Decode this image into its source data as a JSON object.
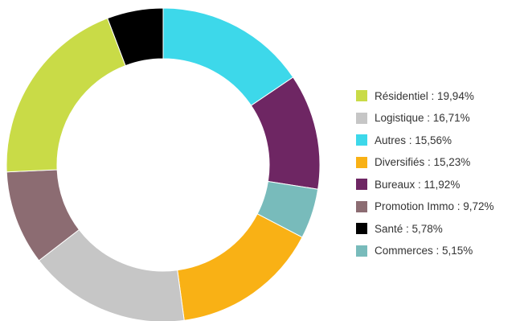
{
  "chart_data": {
    "type": "pie",
    "subtype": "donut",
    "legend_position": "right",
    "slices": [
      {
        "label": "Autres",
        "value": 15.56,
        "display": "15,56%",
        "color": "#3dd8ea"
      },
      {
        "label": "Bureaux",
        "value": 11.92,
        "display": "11,92%",
        "color": "#6e2663"
      },
      {
        "label": "Commerces",
        "value": 5.15,
        "display": "5,15%",
        "color": "#78bbbb"
      },
      {
        "label": "Diversifiés",
        "value": 15.23,
        "display": "15,23%",
        "color": "#f9b115"
      },
      {
        "label": "Logistique",
        "value": 16.71,
        "display": "16,71%",
        "color": "#c6c6c6"
      },
      {
        "label": "Promotion Immo",
        "value": 9.72,
        "display": "9,72%",
        "color": "#8c6c72"
      },
      {
        "label": "Résidentiel",
        "value": 19.94,
        "display": "19,94%",
        "color": "#c9db47"
      },
      {
        "label": "Santé",
        "value": 5.78,
        "display": "5,78%",
        "color": "#000000"
      }
    ],
    "legend": [
      {
        "text": "Résidentiel : 19,94%",
        "color": "#c9db47"
      },
      {
        "text": "Logistique : 16,71%",
        "color": "#c6c6c6"
      },
      {
        "text": "Autres : 15,56%",
        "color": "#3dd8ea"
      },
      {
        "text": "Diversifiés : 15,23%",
        "color": "#f9b115"
      },
      {
        "text": "Bureaux : 11,92%",
        "color": "#6e2663"
      },
      {
        "text": "Promotion Immo : 9,72%",
        "color": "#8c6c72"
      },
      {
        "text": "Santé : 5,78%",
        "color": "#000000"
      },
      {
        "text": "Commerces : 5,15%",
        "color": "#78bbbb"
      }
    ]
  }
}
